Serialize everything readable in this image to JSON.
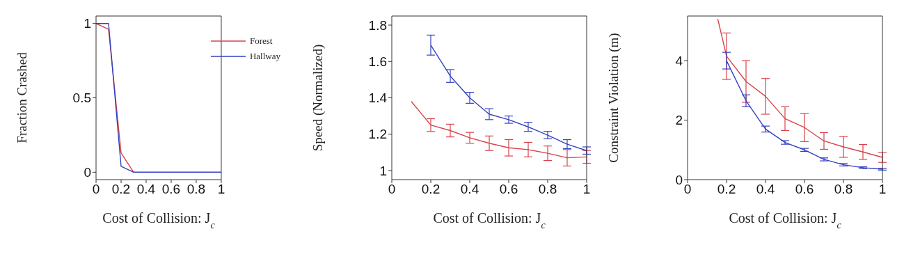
{
  "chart_data": [
    {
      "type": "line",
      "xlabel": "Cost of Collision: J$_{c}$",
      "ylabel": "Fraction Crashed",
      "xlim": [
        0,
        1
      ],
      "xticks": [
        0,
        0.2,
        0.4,
        0.6,
        0.8,
        1
      ],
      "ylim": [
        -0.05,
        1.05
      ],
      "yticks": [
        0,
        0.5,
        1
      ],
      "legend": "top right",
      "x": [
        0,
        0.1,
        0.2,
        0.3,
        0.4,
        0.5,
        0.6,
        0.7,
        0.8,
        0.9,
        1
      ],
      "series": [
        {
          "name": "Forest",
          "color": "#d9424a",
          "values": [
            1,
            0.96,
            0.13,
            0,
            null,
            null,
            null,
            null,
            null,
            null,
            null
          ]
        },
        {
          "name": "Hallway",
          "color": "#3340c0",
          "values": [
            1,
            1,
            0.04,
            0,
            0,
            0,
            0,
            0,
            0,
            0,
            0
          ]
        }
      ]
    },
    {
      "type": "line",
      "xlabel": "Cost of Collision: J$_{c}$",
      "ylabel": "Speed (Normalized)",
      "xlim": [
        0,
        1
      ],
      "xticks": [
        0,
        0.2,
        0.4,
        0.6,
        0.8,
        1
      ],
      "ylim": [
        0.95,
        1.85
      ],
      "yticks": [
        1,
        1.2,
        1.4,
        1.6,
        1.8
      ],
      "series": [
        {
          "color": "#d9424a",
          "x": [
            0.1,
            0.2,
            0.3,
            0.4,
            0.5,
            0.6,
            0.7,
            0.8,
            0.9,
            1
          ],
          "values": [
            1.38,
            1.25,
            1.22,
            1.18,
            1.15,
            1.125,
            1.115,
            1.095,
            1.07,
            1.075
          ],
          "errors": [
            null,
            0.035,
            0.035,
            0.03,
            0.04,
            0.045,
            0.04,
            0.04,
            0.045,
            0.035
          ]
        },
        {
          "color": "#3340c0",
          "x": [
            0.2,
            0.3,
            0.4,
            0.5,
            0.6,
            0.7,
            0.8,
            0.9,
            1
          ],
          "values": [
            1.69,
            1.52,
            1.4,
            1.31,
            1.28,
            1.24,
            1.195,
            1.145,
            1.11
          ],
          "errors": [
            0.055,
            0.035,
            0.03,
            0.03,
            0.02,
            0.025,
            0.02,
            0.025,
            0.02
          ]
        }
      ]
    },
    {
      "type": "line",
      "xlabel": "Cost of Collision: J$_{c}$",
      "ylabel": "Constraint Violation (m)",
      "xlim": [
        0,
        1
      ],
      "xticks": [
        0,
        0.2,
        0.4,
        0.6,
        0.8,
        1
      ],
      "ylim": [
        0,
        5.5
      ],
      "yticks": [
        0,
        2,
        4
      ],
      "series": [
        {
          "color": "#d9424a",
          "x": [
            0.155,
            0.2,
            0.3,
            0.4,
            0.5,
            0.6,
            0.7,
            0.8,
            0.9,
            1
          ],
          "values": [
            5.4,
            4.15,
            3.3,
            2.8,
            2.05,
            1.75,
            1.3,
            1.1,
            0.93,
            0.75
          ],
          "errors": [
            null,
            0.78,
            0.7,
            0.6,
            0.4,
            0.47,
            0.28,
            0.35,
            0.25,
            0.17
          ]
        },
        {
          "color": "#3340c0",
          "x": [
            0.2,
            0.3,
            0.4,
            0.5,
            0.6,
            0.7,
            0.8,
            0.9,
            1
          ],
          "values": [
            4.0,
            2.65,
            1.7,
            1.25,
            1.0,
            0.68,
            0.5,
            0.4,
            0.35
          ],
          "errors": [
            0.28,
            0.2,
            0.1,
            0.06,
            0.05,
            0.05,
            0.04,
            0.03,
            0.03
          ]
        }
      ]
    }
  ]
}
